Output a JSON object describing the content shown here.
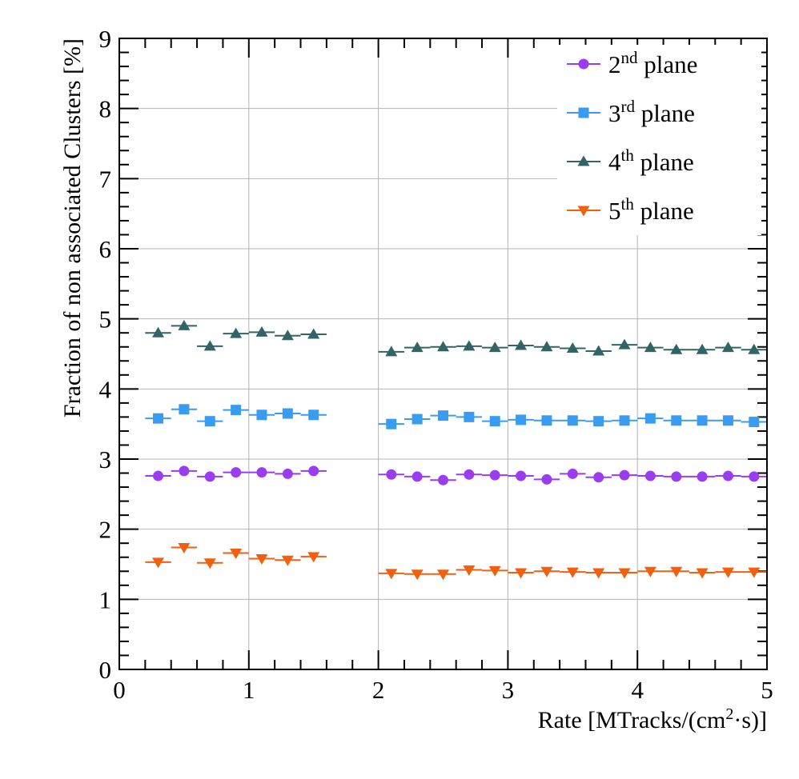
{
  "chart_data": {
    "type": "scatter",
    "title": "",
    "xlabel": "Rate [MTracks/(cm²·s)]",
    "xlabel_parts": [
      "Rate [MTracks/(cm",
      "2",
      "·s)]"
    ],
    "ylabel": "Fraction of non associated Clusters [%]",
    "xlim": [
      0,
      5
    ],
    "ylim": [
      0,
      9
    ],
    "xticks": [
      0,
      1,
      2,
      3,
      4,
      5
    ],
    "xtick_labels": [
      "0",
      "1",
      "2",
      "3",
      "4",
      "5"
    ],
    "yticks": [
      0,
      1,
      2,
      3,
      4,
      5,
      6,
      7,
      8,
      9
    ],
    "ytick_labels": [
      "0",
      "1",
      "2",
      "3",
      "4",
      "5",
      "6",
      "7",
      "8",
      "9"
    ],
    "grid": true,
    "legend_position": "top-right",
    "x_error_half_width": 0.1,
    "series": [
      {
        "name": "2nd plane",
        "legend_num": "2",
        "legend_sup": "nd",
        "legend_rest": " plane",
        "color": "#9a3df0",
        "marker": "circle",
        "x": [
          0.3,
          0.5,
          0.7,
          0.9,
          1.1,
          1.3,
          1.5,
          2.1,
          2.3,
          2.5,
          2.7,
          2.9,
          3.1,
          3.3,
          3.5,
          3.7,
          3.9,
          4.1,
          4.3,
          4.5,
          4.7,
          4.9
        ],
        "y": [
          2.76,
          2.83,
          2.75,
          2.81,
          2.81,
          2.79,
          2.83,
          2.78,
          2.75,
          2.7,
          2.78,
          2.77,
          2.76,
          2.71,
          2.79,
          2.74,
          2.77,
          2.76,
          2.75,
          2.75,
          2.76,
          2.75
        ]
      },
      {
        "name": "3rd plane",
        "legend_num": "3",
        "legend_sup": "rd",
        "legend_rest": " plane",
        "color": "#3a9cf0",
        "marker": "square",
        "x": [
          0.3,
          0.5,
          0.7,
          0.9,
          1.1,
          1.3,
          1.5,
          2.1,
          2.3,
          2.5,
          2.7,
          2.9,
          3.1,
          3.3,
          3.5,
          3.7,
          3.9,
          4.1,
          4.3,
          4.5,
          4.7,
          4.9
        ],
        "y": [
          3.58,
          3.71,
          3.54,
          3.7,
          3.63,
          3.65,
          3.63,
          3.5,
          3.57,
          3.62,
          3.6,
          3.54,
          3.56,
          3.55,
          3.55,
          3.54,
          3.55,
          3.58,
          3.55,
          3.55,
          3.55,
          3.53
        ]
      },
      {
        "name": "4th plane",
        "legend_num": "4",
        "legend_sup": "th",
        "legend_rest": " plane",
        "color": "#336464",
        "marker": "triangle-up",
        "x": [
          0.3,
          0.5,
          0.7,
          0.9,
          1.1,
          1.3,
          1.5,
          2.1,
          2.3,
          2.5,
          2.7,
          2.9,
          3.1,
          3.3,
          3.5,
          3.7,
          3.9,
          4.1,
          4.3,
          4.5,
          4.7,
          4.9
        ],
        "y": [
          4.8,
          4.9,
          4.61,
          4.79,
          4.81,
          4.76,
          4.78,
          4.53,
          4.59,
          4.6,
          4.61,
          4.59,
          4.62,
          4.6,
          4.58,
          4.54,
          4.63,
          4.59,
          4.56,
          4.56,
          4.59,
          4.56
        ]
      },
      {
        "name": "5th plane",
        "legend_num": "5",
        "legend_sup": "th",
        "legend_rest": " plane",
        "color": "#f06010",
        "marker": "triangle-down",
        "x": [
          0.3,
          0.5,
          0.7,
          0.9,
          1.1,
          1.3,
          1.5,
          2.1,
          2.3,
          2.5,
          2.7,
          2.9,
          3.1,
          3.3,
          3.5,
          3.7,
          3.9,
          4.1,
          4.3,
          4.5,
          4.7,
          4.9
        ],
        "y": [
          1.53,
          1.74,
          1.52,
          1.66,
          1.58,
          1.56,
          1.61,
          1.37,
          1.36,
          1.36,
          1.42,
          1.41,
          1.38,
          1.4,
          1.39,
          1.38,
          1.38,
          1.4,
          1.4,
          1.38,
          1.39,
          1.39
        ]
      }
    ]
  }
}
